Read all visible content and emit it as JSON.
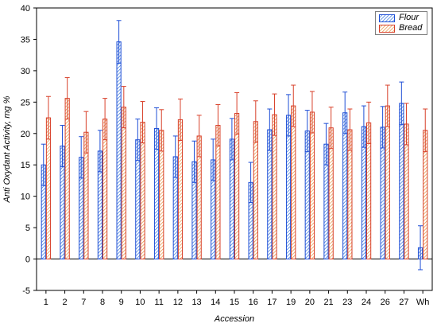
{
  "chart_data": {
    "type": "bar",
    "xlabel": "Accession",
    "ylabel": "Anti Oxydant Activity, mg %",
    "ylim": [
      -5,
      40
    ],
    "yticks": [
      -5,
      0,
      5,
      10,
      15,
      20,
      25,
      30,
      35,
      40
    ],
    "grid": false,
    "legend_position": "top-right",
    "categories": [
      "1",
      "2",
      "7",
      "8",
      "9",
      "10",
      "11",
      "12",
      "13",
      "14",
      "15",
      "16",
      "17",
      "19",
      "20",
      "21",
      "23",
      "24",
      "26",
      "27",
      "Wh"
    ],
    "series": [
      {
        "name": "Flour",
        "color": "#1f4fd6",
        "pattern": "hatched-blue",
        "values": [
          15.0,
          18.0,
          16.2,
          17.2,
          34.6,
          19.0,
          20.8,
          16.3,
          15.5,
          15.8,
          19.1,
          12.2,
          20.6,
          22.9,
          20.4,
          18.3,
          23.3,
          21.1,
          21.0,
          24.8,
          1.8
        ],
        "error": [
          3.3,
          3.3,
          3.3,
          3.3,
          3.4,
          3.3,
          3.3,
          3.3,
          3.3,
          3.3,
          3.3,
          3.2,
          3.3,
          3.3,
          3.3,
          3.3,
          3.3,
          3.3,
          3.3,
          3.4,
          3.5
        ]
      },
      {
        "name": "Bread",
        "color": "#d8402a",
        "pattern": "hatched-orange",
        "values": [
          22.5,
          25.6,
          20.2,
          22.3,
          24.2,
          21.8,
          20.5,
          22.2,
          19.6,
          21.3,
          23.2,
          21.9,
          23.0,
          24.4,
          23.4,
          20.9,
          20.6,
          21.7,
          24.4,
          21.5,
          20.5
        ],
        "error": [
          3.4,
          3.3,
          3.3,
          3.3,
          3.3,
          3.3,
          3.3,
          3.3,
          3.3,
          3.3,
          3.3,
          3.3,
          3.3,
          3.3,
          3.3,
          3.3,
          3.3,
          3.3,
          3.3,
          3.3,
          3.4
        ]
      }
    ]
  }
}
